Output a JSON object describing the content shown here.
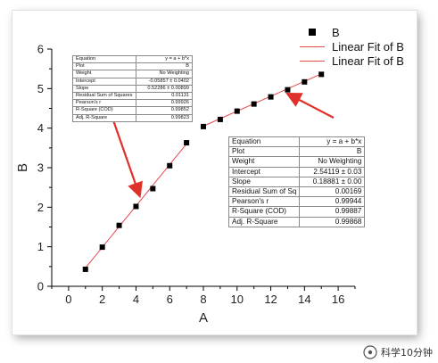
{
  "chart_data": {
    "type": "scatter",
    "xlabel": "A",
    "ylabel": "B",
    "xlim": [
      -1,
      17
    ],
    "ylim": [
      0,
      6
    ],
    "x_ticks": [
      "0",
      "2",
      "4",
      "6",
      "8",
      "10",
      "12",
      "14",
      "16"
    ],
    "y_ticks": [
      "0",
      "1",
      "2",
      "3",
      "4",
      "5",
      "6"
    ],
    "series": [
      {
        "name": "B",
        "marker": "square",
        "color": "#000000",
        "x": [
          1,
          2,
          3,
          4,
          5,
          6,
          7,
          8,
          9,
          10,
          11,
          12,
          13,
          14,
          15
        ],
        "y": [
          0.43,
          0.99,
          1.54,
          2.02,
          2.47,
          3.05,
          3.63,
          4.04,
          4.22,
          4.43,
          4.61,
          4.79,
          4.97,
          5.17,
          5.36
        ]
      }
    ],
    "fits": [
      {
        "name": "Linear Fit of B",
        "color": "#e8474c",
        "intercept": -0.05857,
        "slope": 0.52286,
        "x_range": [
          1,
          7
        ]
      },
      {
        "name": "Linear Fit of B",
        "color": "#e8474c",
        "intercept": 2.54119,
        "slope": 0.18881,
        "x_range": [
          8,
          15
        ]
      }
    ],
    "legend_position": "top-right",
    "grid": false,
    "arrow_color": "#e0302a"
  },
  "legend": {
    "items": [
      {
        "label": "B"
      },
      {
        "label": "Linear Fit of B"
      },
      {
        "label": "Linear Fit of B"
      }
    ]
  },
  "tables": {
    "left": [
      [
        "Equation",
        "y = a + b*x"
      ],
      [
        "Plot",
        "B"
      ],
      [
        "Weight",
        "No Weighting"
      ],
      [
        "Intercept",
        "-0.05857 ± 0.0402"
      ],
      [
        "Slope",
        "0.52286 ± 0.00899"
      ],
      [
        "Residual Sum of Squares",
        "0.01131"
      ],
      [
        "Pearson's r",
        "0.99926"
      ],
      [
        "R-Square (COD)",
        "0.99852"
      ],
      [
        "Adj. R-Square",
        "0.99823"
      ]
    ],
    "right": [
      [
        "Equation",
        "y = a + b*x"
      ],
      [
        "Plot",
        "B"
      ],
      [
        "Weight",
        "No Weighting"
      ],
      [
        "Intercept",
        "2.54119 ± 0.03"
      ],
      [
        "Slope",
        "0.18881 ± 0.00"
      ],
      [
        "Residual Sum of Sq",
        "0.00169"
      ],
      [
        "Pearson's r",
        "0.99944"
      ],
      [
        "R-Square (COD)",
        "0.99887"
      ],
      [
        "Adj. R-Square",
        "0.99868"
      ]
    ]
  },
  "watermark": {
    "text": "科学10分钟"
  }
}
